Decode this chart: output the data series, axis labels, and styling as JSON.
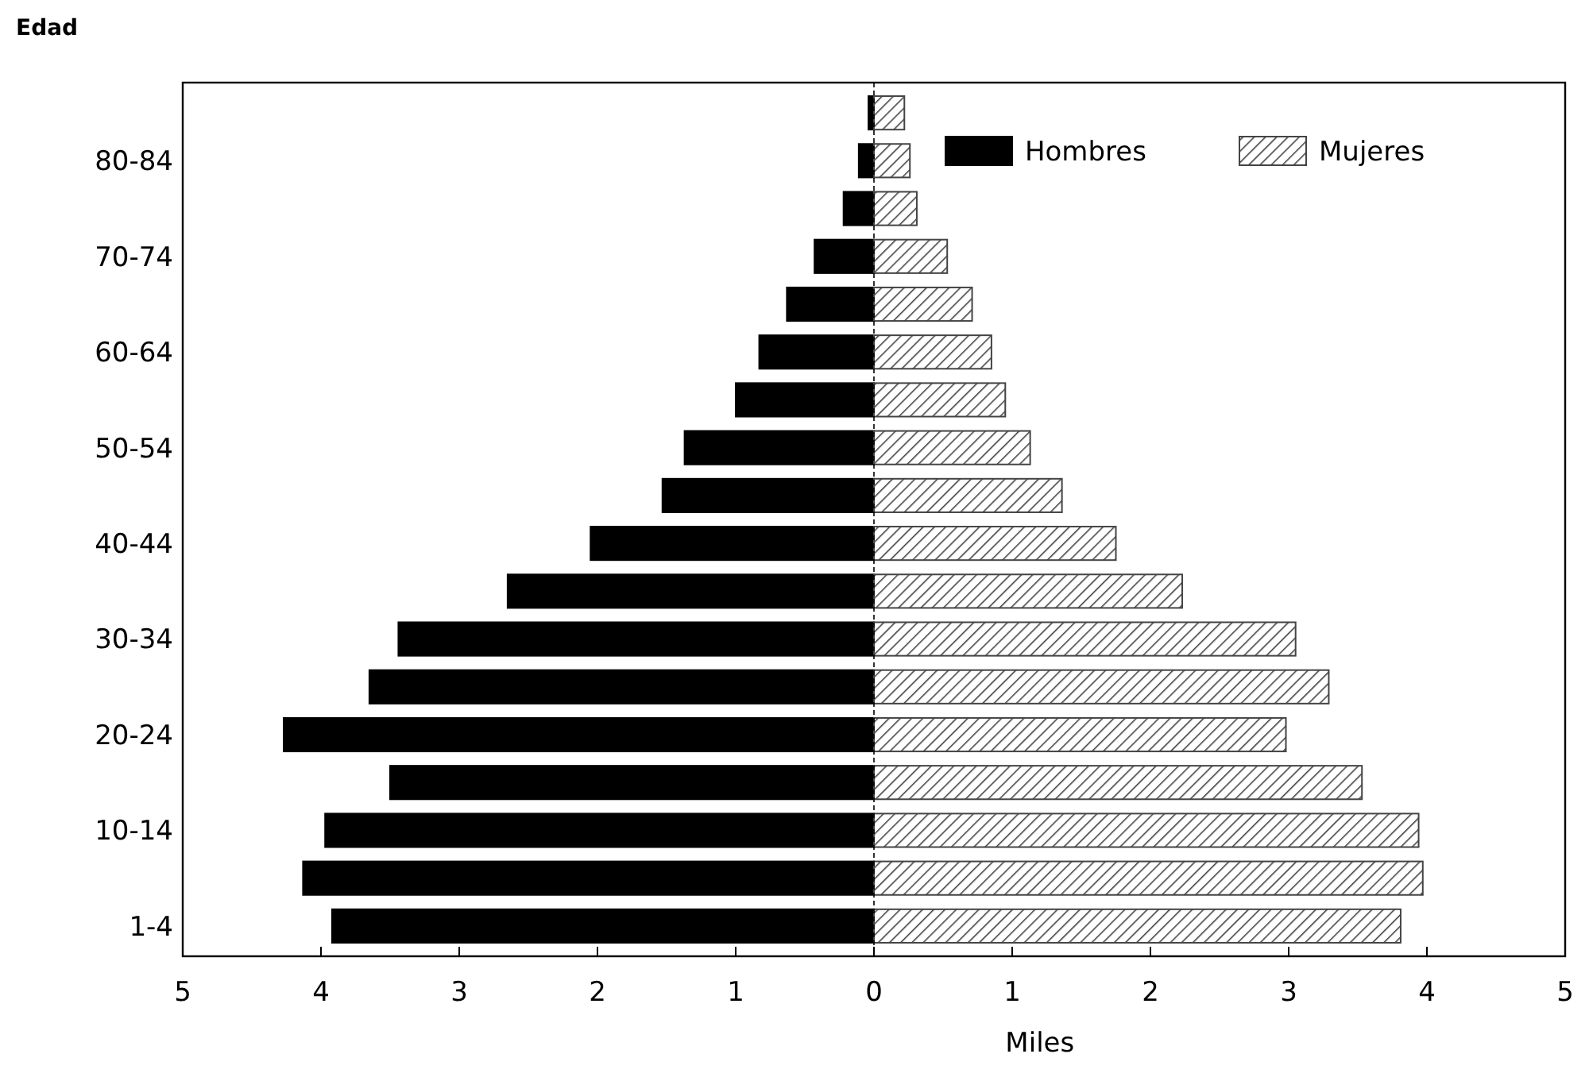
{
  "chart_data": {
    "type": "bar",
    "orientation": "horizontal",
    "stacked": true,
    "ylabel": "Edad",
    "xlabel": "Miles",
    "categories": [
      null,
      "80-84",
      null,
      "70-74",
      null,
      "60-64",
      null,
      "50-54",
      null,
      "40-44",
      null,
      "30-34",
      null,
      "20-24",
      null,
      "10-14",
      null,
      "1-4"
    ],
    "series": [
      {
        "name": "Hombres",
        "color": "#000000",
        "values": [
          -0.04,
          -0.11,
          -0.22,
          -0.43,
          -0.63,
          -0.83,
          -1.0,
          -1.37,
          -1.53,
          -2.05,
          -2.65,
          -3.44,
          -3.65,
          -4.27,
          -3.5,
          -3.97,
          -4.13,
          -3.92
        ]
      },
      {
        "name": "Mujeres",
        "color": "#444444",
        "values": [
          0.22,
          0.26,
          0.31,
          0.53,
          0.71,
          0.85,
          0.95,
          1.13,
          1.36,
          1.75,
          2.23,
          3.05,
          3.29,
          2.98,
          3.53,
          3.94,
          3.97,
          3.81
        ]
      }
    ],
    "xlim": [
      -5,
      5
    ],
    "xticks": [
      {
        "value": -5,
        "label": "5"
      },
      {
        "value": -4,
        "label": "4"
      },
      {
        "value": -3,
        "label": "3"
      },
      {
        "value": -2,
        "label": "2"
      },
      {
        "value": -1,
        "label": "1"
      },
      0,
      1,
      2,
      3,
      4,
      5
    ],
    "ref_lines": [
      {
        "axis": "x",
        "value": 0,
        "line_style": "dashed",
        "color": "#000000"
      }
    ],
    "legend": "top right"
  }
}
